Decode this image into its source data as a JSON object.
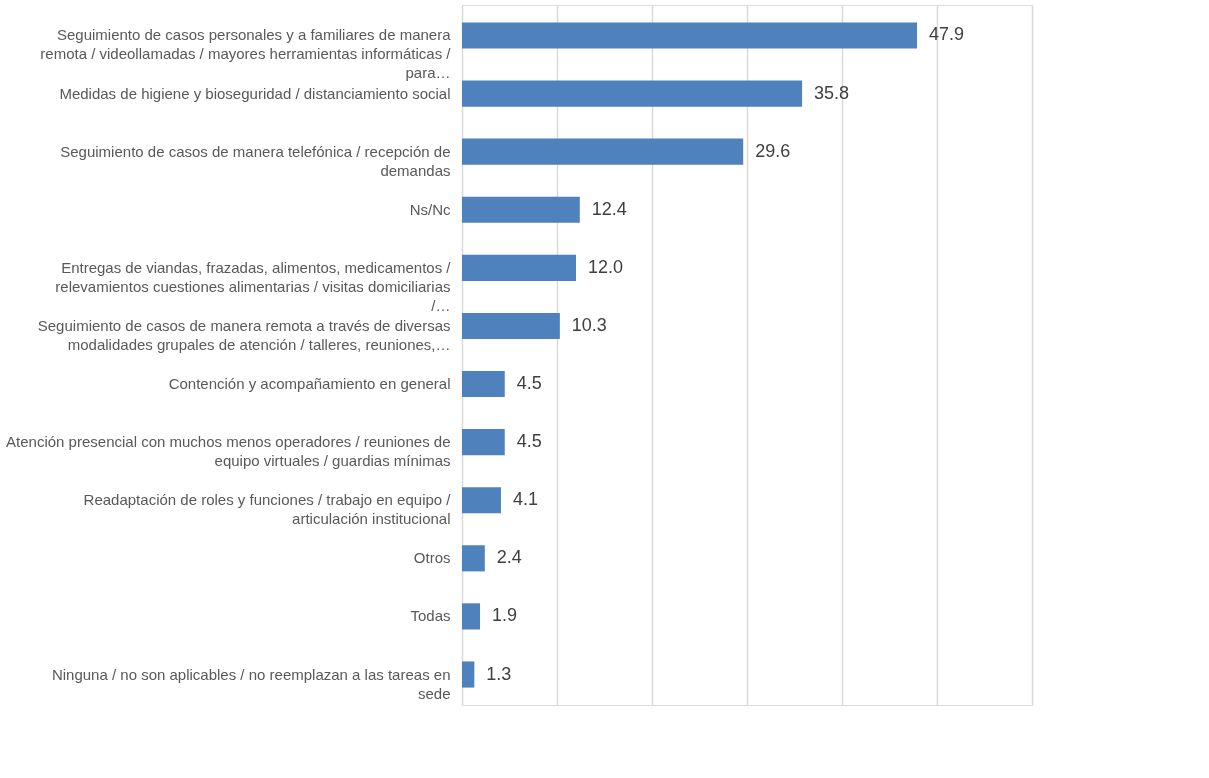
{
  "chart_data": {
    "type": "bar",
    "orientation": "horizontal",
    "categories": [
      "Seguimiento de casos personales y a familiares de manera remota / videollamadas / mayores herramientas informáticas / para…",
      "Medidas de higiene y bioseguridad / distanciamiento social",
      "Seguimiento de casos de manera telefónica / recepción de demandas",
      "Ns/Nc",
      "Entregas de viandas, frazadas, alimentos, medicamentos / relevamientos cuestiones alimentarias / visitas domiciliarias /…",
      "Seguimiento de casos de manera remota a través de diversas modalidades grupales de atención / talleres, reuniones,…",
      "Contención y acompañamiento en general",
      "Atención presencial con muchos menos operadores / reuniones de equipo virtuales / guardias mínimas",
      "Readaptación de roles y funciones / trabajo en equipo / articulación institucional",
      "Otros",
      "Todas",
      "Ninguna / no son aplicables / no reemplazan a las tareas en sede"
    ],
    "values": [
      47.9,
      35.8,
      29.6,
      12.4,
      12.0,
      10.3,
      4.5,
      4.5,
      4.1,
      2.4,
      1.9,
      1.3
    ],
    "value_labels": [
      "47.9",
      "35.8",
      "29.6",
      "12.4",
      "12.0",
      "10.3",
      "4.5",
      "4.5",
      "4.1",
      "2.4",
      "1.9",
      "1.3"
    ],
    "color": "#4f81bd",
    "xlim": [
      0,
      60
    ],
    "xticks": [
      {
        "value": 0,
        "label": null
      },
      {
        "value": 10,
        "label": null
      },
      {
        "value": 20,
        "label": null
      },
      {
        "value": 30,
        "label": null
      },
      {
        "value": 40,
        "label": null
      },
      {
        "value": 50,
        "label": null
      },
      {
        "value": 60,
        "label": null
      }
    ],
    "tick_labels": "y",
    "grid": "x"
  }
}
